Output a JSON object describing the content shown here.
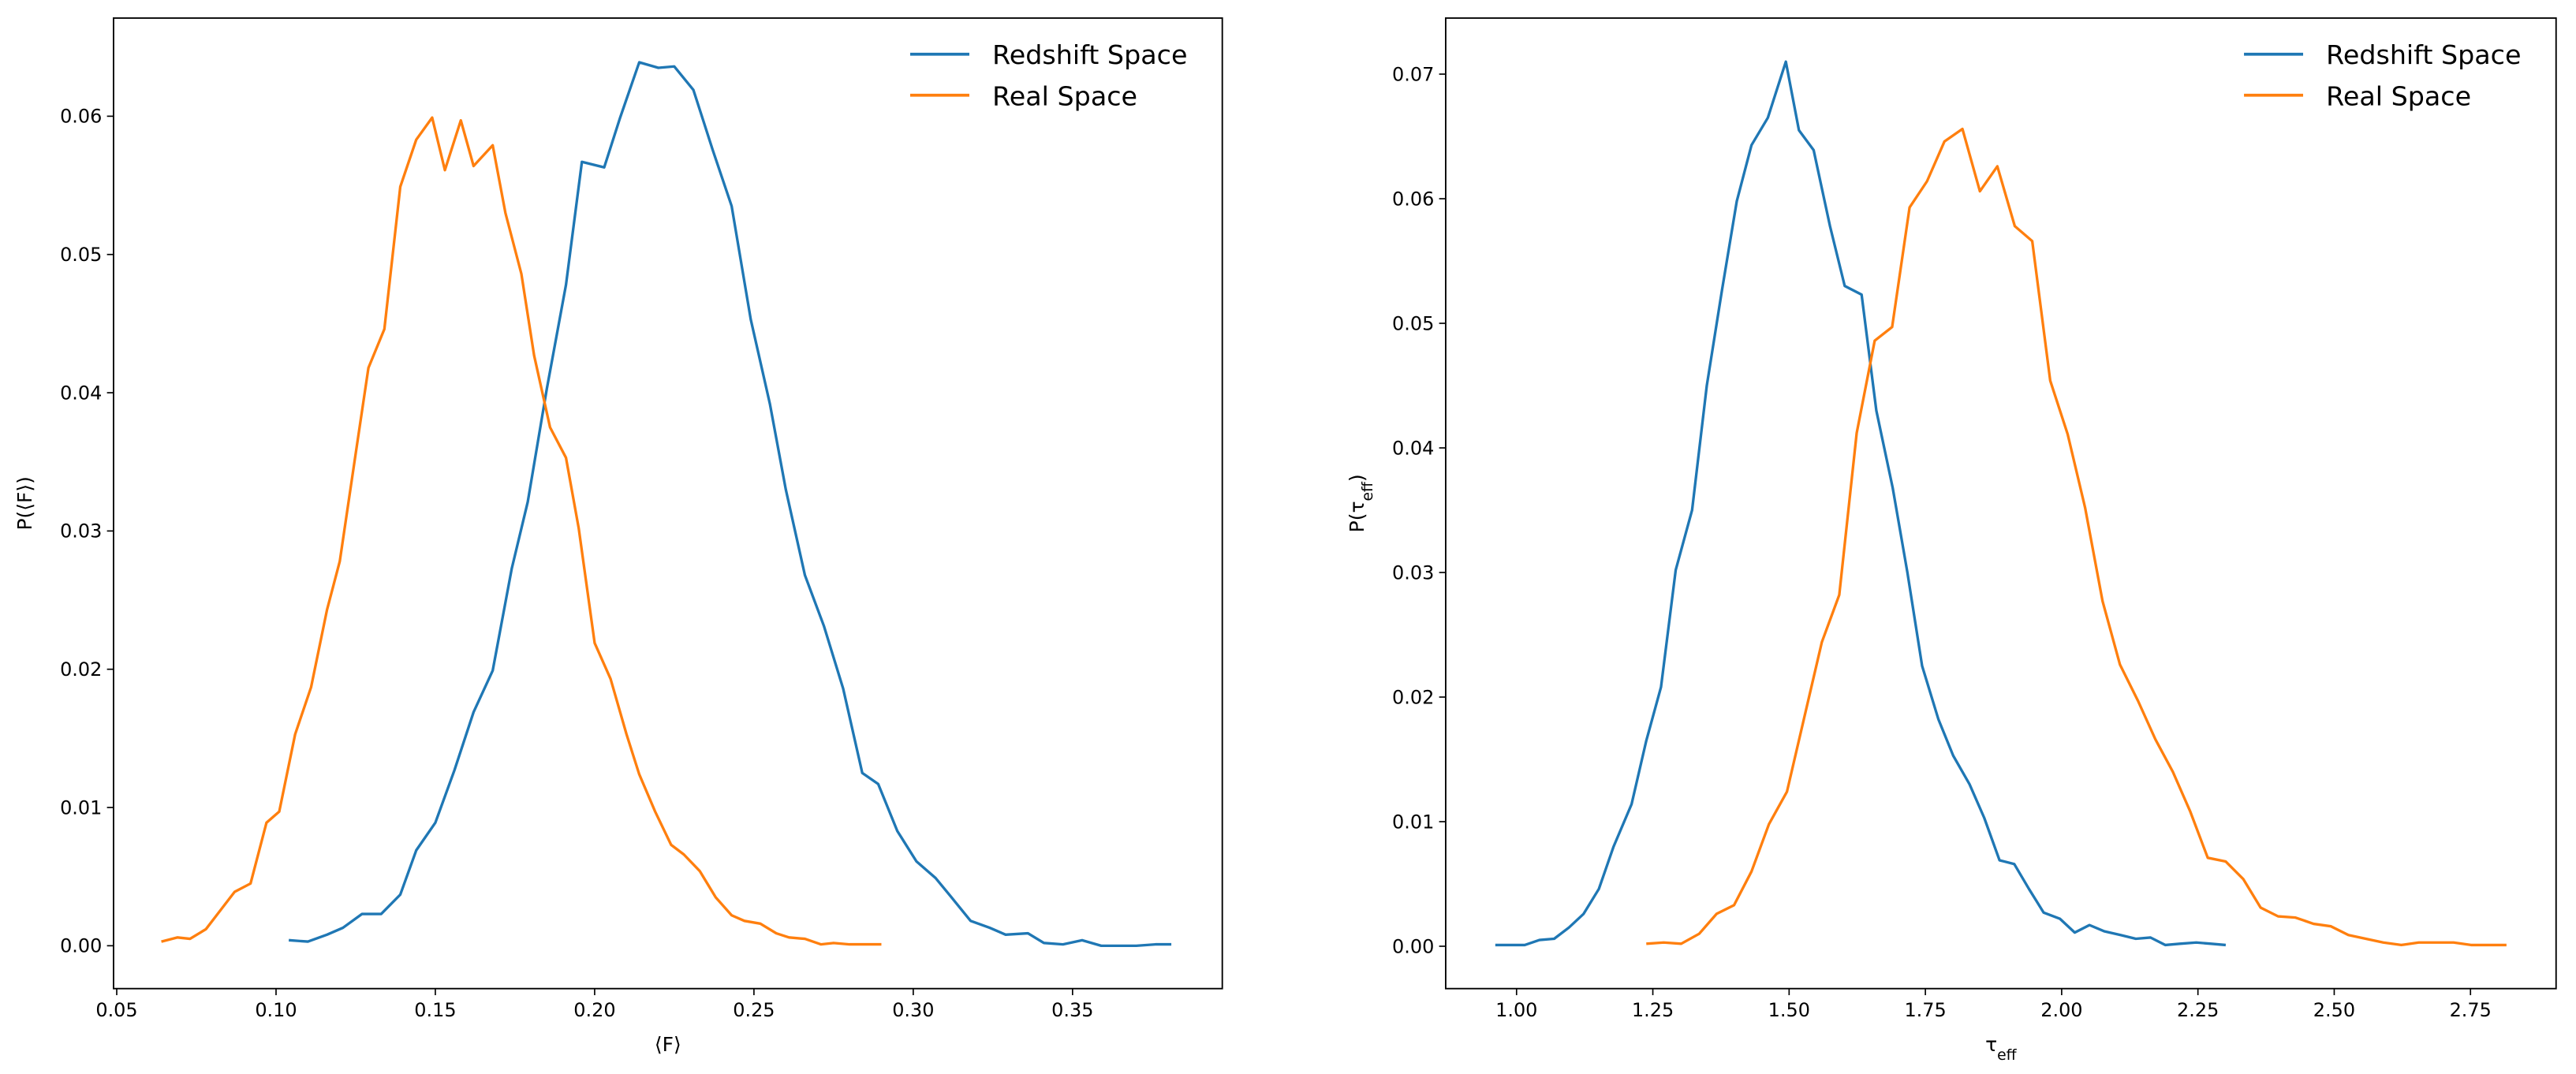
{
  "chart_data": [
    {
      "type": "line",
      "xlabel": [
        "⟨F⟩"
      ],
      "ylabel": [
        "P(⟨F⟩)"
      ],
      "legend": "upper right",
      "xlim": [
        0.049,
        0.397
      ],
      "ylim": [
        -0.0031,
        0.0671
      ],
      "xticks": [
        0.05,
        {
          "value": 0.1,
          "label": "0.10"
        },
        0.15,
        {
          "value": 0.2,
          "label": "0.20"
        },
        0.25,
        {
          "value": 0.3,
          "label": "0.30"
        },
        0.35
      ],
      "yticks": [
        {
          "value": 0,
          "label": "0.00"
        },
        0.01,
        0.02,
        0.03,
        0.04,
        0.05,
        0.06
      ],
      "series": [
        {
          "name": "Redshift Space",
          "color": "#1f77b4",
          "x": [
            0.104,
            0.11,
            0.116,
            0.121,
            0.127,
            0.133,
            0.139,
            0.144,
            0.15,
            0.156,
            0.162,
            0.168,
            0.174,
            0.179,
            0.185,
            0.191,
            0.196,
            0.203,
            0.208,
            0.214,
            0.22,
            0.225,
            0.231,
            0.237,
            0.243,
            0.249,
            0.255,
            0.26,
            0.266,
            0.272,
            0.278,
            0.284,
            0.289,
            0.295,
            0.301,
            0.307,
            0.312,
            0.318,
            0.324,
            0.329,
            0.336,
            0.341,
            0.347,
            0.353,
            0.359,
            0.364,
            0.37,
            0.376,
            0.381
          ],
          "values": [
            0.0004,
            0.0003,
            0.0008,
            0.0013,
            0.0023,
            0.0023,
            0.0037,
            0.0069,
            0.0089,
            0.0127,
            0.0169,
            0.0199,
            0.0273,
            0.0321,
            0.0403,
            0.0478,
            0.0567,
            0.0563,
            0.0599,
            0.0639,
            0.0635,
            0.0636,
            0.0619,
            0.0576,
            0.0535,
            0.0453,
            0.0392,
            0.033,
            0.0268,
            0.0231,
            0.0186,
            0.0125,
            0.0117,
            0.0083,
            0.0061,
            0.0049,
            0.0035,
            0.0018,
            0.0013,
            0.0008,
            0.0009,
            0.0002,
            0.0001,
            0.0004,
            0,
            0,
            0,
            0.0001,
            0.0001
          ]
        },
        {
          "name": "Real Space",
          "color": "#ff7f0e",
          "x": [
            0.064,
            0.069,
            0.073,
            0.078,
            0.083,
            0.087,
            0.092,
            0.097,
            0.101,
            0.106,
            0.111,
            0.116,
            0.12,
            0.125,
            0.129,
            0.134,
            0.139,
            0.144,
            0.149,
            0.153,
            0.158,
            0.162,
            0.168,
            0.172,
            0.177,
            0.181,
            0.186,
            0.191,
            0.195,
            0.2,
            0.205,
            0.21,
            0.214,
            0.219,
            0.224,
            0.228,
            0.233,
            0.238,
            0.243,
            0.247,
            0.252,
            0.257,
            0.261,
            0.266,
            0.271,
            0.275,
            0.28,
            0.285,
            0.29
          ],
          "values": [
            0.0003,
            0.0006,
            0.0005,
            0.0012,
            0.0027,
            0.0039,
            0.0045,
            0.0089,
            0.0097,
            0.0153,
            0.0187,
            0.0243,
            0.0278,
            0.0356,
            0.0418,
            0.0446,
            0.0549,
            0.0583,
            0.0599,
            0.0561,
            0.0597,
            0.0564,
            0.0579,
            0.053,
            0.0486,
            0.0427,
            0.0375,
            0.0353,
            0.0302,
            0.0219,
            0.0193,
            0.0153,
            0.0124,
            0.0097,
            0.0073,
            0.0066,
            0.0054,
            0.0035,
            0.0022,
            0.0018,
            0.0016,
            0.0009,
            0.0006,
            0.0005,
            0.0001,
            0.0002,
            0.0001,
            0.0001,
            0.0001
          ]
        }
      ]
    },
    {
      "type": "line",
      "xlabel": [
        "τ",
        "eff"
      ],
      "ylabel": [
        "P(τ",
        "eff",
        ")"
      ],
      "legend": "upper right",
      "xlim": [
        0.87,
        2.907
      ],
      "ylim": [
        -0.0034,
        0.0745
      ],
      "xticks": [
        {
          "value": 1,
          "label": "1.00"
        },
        1.25,
        {
          "value": 1.5,
          "label": "1.50"
        },
        1.75,
        {
          "value": 2,
          "label": "2.00"
        },
        2.25,
        {
          "value": 2.5,
          "label": "2.50"
        },
        2.75
      ],
      "yticks": [
        {
          "value": 0,
          "label": "0.00"
        },
        0.01,
        0.02,
        0.03,
        0.04,
        0.05,
        0.06,
        0.07
      ],
      "series": [
        {
          "name": "Redshift Space",
          "color": "#1f77b4",
          "x": [
            0.961,
            0.988,
            1.015,
            1.042,
            1.069,
            1.096,
            1.123,
            1.151,
            1.178,
            1.211,
            1.238,
            1.265,
            1.292,
            1.322,
            1.349,
            1.377,
            1.404,
            1.431,
            1.461,
            1.494,
            1.518,
            1.545,
            1.575,
            1.602,
            1.633,
            1.66,
            1.69,
            1.717,
            1.744,
            1.774,
            1.801,
            1.831,
            1.858,
            1.886,
            1.913,
            1.94,
            1.967,
            1.997,
            2.024,
            2.051,
            2.078,
            2.108,
            2.136,
            2.163,
            2.19,
            2.217,
            2.247,
            2.274,
            2.301
          ],
          "values": [
            0.0001,
            0.0001,
            0.0001,
            0.0005,
            0.0006,
            0.0015,
            0.0026,
            0.0046,
            0.008,
            0.0114,
            0.0165,
            0.0208,
            0.0302,
            0.035,
            0.045,
            0.0527,
            0.0598,
            0.0643,
            0.0665,
            0.071,
            0.0655,
            0.0639,
            0.0578,
            0.053,
            0.0523,
            0.043,
            0.0368,
            0.03,
            0.0225,
            0.0182,
            0.0153,
            0.013,
            0.0103,
            0.0069,
            0.0066,
            0.0046,
            0.0027,
            0.0022,
            0.0011,
            0.0017,
            0.0012,
            0.0009,
            0.0006,
            0.0007,
            0.0001,
            0.0002,
            0.0003,
            0.0002,
            0.0001
          ]
        },
        {
          "name": "Real Space",
          "color": "#ff7f0e",
          "x": [
            1.238,
            1.27,
            1.302,
            1.335,
            1.367,
            1.399,
            1.431,
            1.463,
            1.496,
            1.528,
            1.56,
            1.592,
            1.624,
            1.657,
            1.689,
            1.721,
            1.753,
            1.785,
            1.818,
            1.85,
            1.882,
            1.914,
            1.946,
            1.979,
            2.011,
            2.043,
            2.075,
            2.107,
            2.14,
            2.172,
            2.204,
            2.236,
            2.268,
            2.301,
            2.333,
            2.365,
            2.397,
            2.429,
            2.462,
            2.494,
            2.526,
            2.558,
            2.59,
            2.623,
            2.655,
            2.687,
            2.719,
            2.751,
            2.784,
            2.816
          ],
          "values": [
            0.0002,
            0.0003,
            0.0002,
            0.001,
            0.0026,
            0.0033,
            0.006,
            0.0098,
            0.0124,
            0.0184,
            0.0244,
            0.0282,
            0.0412,
            0.0486,
            0.0497,
            0.0593,
            0.0614,
            0.0646,
            0.0656,
            0.0606,
            0.0626,
            0.0578,
            0.0566,
            0.0454,
            0.0411,
            0.0352,
            0.0277,
            0.0226,
            0.0197,
            0.0166,
            0.014,
            0.0108,
            0.0071,
            0.0068,
            0.0054,
            0.0031,
            0.0024,
            0.0023,
            0.0018,
            0.0016,
            0.0009,
            0.0006,
            0.0003,
            0.0001,
            0.0003,
            0.0003,
            0.0003,
            0.0001,
            0.0001,
            0.0001
          ]
        }
      ]
    }
  ]
}
